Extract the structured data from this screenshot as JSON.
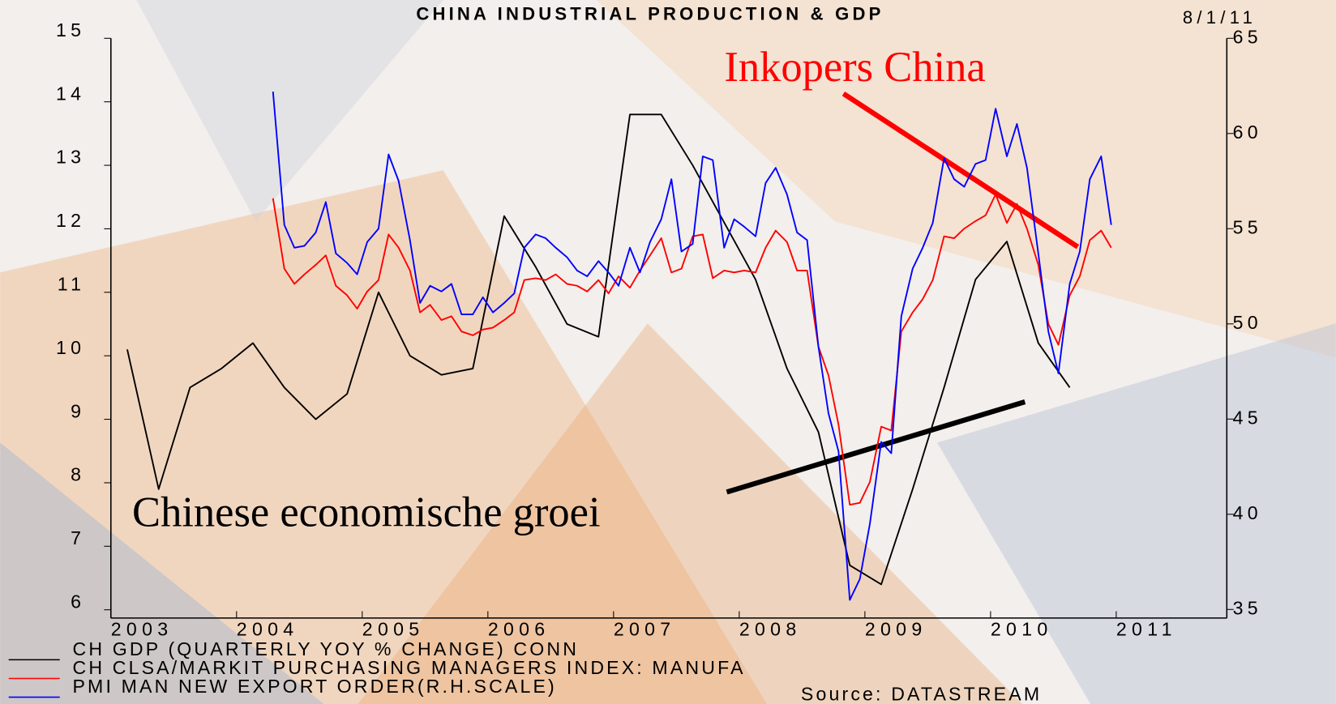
{
  "chart_data": {
    "type": "line",
    "title": "CHINA INDUSTRIAL PRODUCTION & GDP",
    "date_label": "8/1/11",
    "source": "Source: DATASTREAM",
    "annotations": [
      "Inkopers China",
      "Chinese economische groei"
    ],
    "xlim": [
      2003,
      2011.88
    ],
    "xticks": [
      2003,
      2004,
      2005,
      2006,
      2007,
      2008,
      2009,
      2010,
      2011
    ],
    "ylim": [
      5.87,
      15
    ],
    "yticks": [
      6,
      7,
      8,
      9,
      10,
      11,
      12,
      13,
      14,
      15
    ],
    "y2lim": [
      34.55,
      65
    ],
    "y2ticks": [
      35,
      40,
      45,
      50,
      55,
      60,
      65
    ],
    "series": [
      {
        "name": "CH GDP (QUARTERLY YOY % CHANGE) CONN",
        "color": "#000000",
        "x": [
          2003.13,
          2003.38,
          2003.63,
          2003.88,
          2004.13,
          2004.38,
          2004.63,
          2004.88,
          2005.13,
          2005.38,
          2005.63,
          2005.88,
          2006.13,
          2006.38,
          2006.63,
          2006.88,
          2007.13,
          2007.38,
          2007.63,
          2007.88,
          2008.13,
          2008.38,
          2008.63,
          2008.88,
          2009.13,
          2009.38,
          2009.63,
          2009.88,
          2010.13,
          2010.38,
          2010.63
        ],
        "values": [
          10.1,
          7.9,
          9.5,
          9.8,
          10.2,
          9.5,
          9.0,
          9.4,
          11.0,
          10.0,
          9.7,
          9.8,
          12.2,
          11.4,
          10.5,
          10.3,
          13.8,
          13.8,
          13.0,
          12.1,
          11.2,
          9.8,
          8.8,
          6.7,
          6.4,
          7.9,
          9.5,
          11.2,
          11.8,
          10.2,
          9.5
        ]
      },
      {
        "name": "CH CLSA/MARKIT PURCHASING MANAGERS INDEX: MANUFA",
        "color": "#ff0000",
        "axis": "y2",
        "x": [
          2004.29,
          2004.38,
          2004.46,
          2004.54,
          2004.63,
          2004.71,
          2004.79,
          2004.88,
          2004.96,
          2005.04,
          2005.13,
          2005.21,
          2005.29,
          2005.38,
          2005.46,
          2005.54,
          2005.63,
          2005.71,
          2005.79,
          2005.88,
          2005.96,
          2006.04,
          2006.13,
          2006.21,
          2006.29,
          2006.38,
          2006.46,
          2006.54,
          2006.63,
          2006.71,
          2006.79,
          2006.88,
          2006.96,
          2007.04,
          2007.13,
          2007.21,
          2007.29,
          2007.38,
          2007.46,
          2007.54,
          2007.63,
          2007.71,
          2007.79,
          2007.88,
          2007.96,
          2008.04,
          2008.13,
          2008.21,
          2008.29,
          2008.38,
          2008.46,
          2008.54,
          2008.63,
          2008.71,
          2008.79,
          2008.88,
          2008.96,
          2009.04,
          2009.13,
          2009.21,
          2009.29,
          2009.38,
          2009.46,
          2009.54,
          2009.63,
          2009.71,
          2009.79,
          2009.88,
          2009.96,
          2010.04,
          2010.13,
          2010.21,
          2010.29,
          2010.38,
          2010.46,
          2010.54,
          2010.63,
          2010.71,
          2010.79,
          2010.88,
          2010.96
        ],
        "values": [
          56.6,
          52.9,
          52.1,
          52.6,
          53.1,
          53.6,
          52.0,
          51.5,
          50.8,
          51.7,
          52.3,
          54.7,
          54.0,
          52.8,
          50.6,
          51.0,
          50.2,
          50.4,
          49.6,
          49.4,
          49.7,
          49.8,
          50.2,
          50.6,
          52.3,
          52.4,
          52.3,
          52.6,
          52.1,
          52.0,
          51.7,
          52.3,
          51.6,
          52.5,
          51.9,
          52.8,
          53.6,
          54.5,
          52.7,
          52.9,
          54.6,
          54.7,
          52.4,
          52.8,
          52.7,
          52.8,
          52.7,
          54.0,
          54.9,
          54.3,
          52.8,
          52.8,
          48.8,
          47.3,
          44.7,
          40.5,
          40.6,
          41.7,
          44.6,
          44.4,
          49.6,
          50.6,
          51.3,
          52.3,
          54.6,
          54.5,
          55.0,
          55.4,
          55.7,
          56.8,
          55.3,
          56.3,
          55.0,
          53.1,
          50.0,
          48.9,
          51.5,
          52.5,
          54.4,
          54.9,
          54.0
        ]
      },
      {
        "name": "PMI MAN NEW EXPORT ORDER(R.H.SCALE)",
        "color": "#0000ff",
        "axis": "y2",
        "x": [
          2004.29,
          2004.38,
          2004.46,
          2004.54,
          2004.63,
          2004.71,
          2004.79,
          2004.88,
          2004.96,
          2005.04,
          2005.13,
          2005.21,
          2005.29,
          2005.38,
          2005.46,
          2005.54,
          2005.63,
          2005.71,
          2005.79,
          2005.88,
          2005.96,
          2006.04,
          2006.13,
          2006.21,
          2006.29,
          2006.38,
          2006.46,
          2006.54,
          2006.63,
          2006.71,
          2006.79,
          2006.88,
          2006.96,
          2007.04,
          2007.13,
          2007.21,
          2007.29,
          2007.38,
          2007.46,
          2007.54,
          2007.63,
          2007.71,
          2007.79,
          2007.88,
          2007.96,
          2008.04,
          2008.13,
          2008.21,
          2008.29,
          2008.38,
          2008.46,
          2008.54,
          2008.63,
          2008.71,
          2008.79,
          2008.88,
          2008.96,
          2009.04,
          2009.13,
          2009.21,
          2009.29,
          2009.38,
          2009.46,
          2009.54,
          2009.63,
          2009.71,
          2009.79,
          2009.88,
          2009.96,
          2010.04,
          2010.13,
          2010.21,
          2010.29,
          2010.38,
          2010.46,
          2010.54,
          2010.63,
          2010.71,
          2010.79,
          2010.88,
          2010.96
        ],
        "values": [
          62.2,
          55.2,
          54.0,
          54.1,
          54.8,
          56.4,
          53.7,
          53.2,
          52.6,
          54.3,
          55.0,
          58.9,
          57.5,
          54.4,
          51.1,
          52.0,
          51.7,
          52.1,
          50.5,
          50.5,
          51.4,
          50.6,
          51.1,
          51.6,
          54.0,
          54.7,
          54.5,
          54.0,
          53.5,
          52.8,
          52.5,
          53.3,
          52.7,
          52.0,
          54.0,
          52.7,
          54.3,
          55.5,
          57.6,
          53.8,
          54.2,
          58.8,
          58.6,
          54.0,
          55.5,
          55.1,
          54.6,
          57.4,
          58.2,
          56.8,
          54.8,
          54.4,
          48.8,
          45.3,
          43.3,
          35.5,
          36.6,
          39.5,
          43.8,
          43.2,
          50.4,
          52.9,
          54.0,
          55.3,
          58.7,
          57.6,
          57.2,
          58.4,
          58.6,
          61.3,
          58.8,
          60.5,
          58.2,
          53.7,
          49.6,
          47.4,
          52.1,
          53.8,
          57.6,
          58.8,
          55.2
        ]
      }
    ]
  }
}
